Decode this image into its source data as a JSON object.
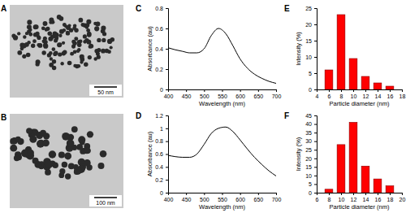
{
  "chart_data": [
    {
      "type": "image",
      "title": "A",
      "annotations": [
        "50 nm"
      ]
    },
    {
      "type": "line",
      "title": "C",
      "x_label": "Wavelength (nm)",
      "y_label": "Absorbance (au)",
      "x": [
        400,
        420,
        440,
        460,
        480,
        500,
        520,
        540,
        560,
        580,
        600,
        620,
        640,
        660,
        680,
        700
      ],
      "values": [
        0.41,
        0.39,
        0.375,
        0.36,
        0.36,
        0.4,
        0.53,
        0.6,
        0.55,
        0.43,
        0.3,
        0.21,
        0.15,
        0.11,
        0.08,
        0.06
      ],
      "color": "#000000",
      "xlim": [
        400,
        700
      ],
      "xticks": [
        400,
        450,
        500,
        550,
        600,
        650,
        700
      ],
      "ylim": [
        0,
        0.8
      ],
      "yticks": [
        0,
        0.2,
        0.4,
        0.6,
        0.8
      ]
    },
    {
      "type": "bar",
      "title": "E",
      "x_label": "Particle diameter (nm)",
      "y_label": "Intensity (%)",
      "x": [
        6,
        8,
        10,
        12,
        14,
        16
      ],
      "values": [
        6,
        23,
        9.5,
        4,
        2,
        1
      ],
      "color": "#ff0000",
      "xlim": [
        4,
        18
      ],
      "xticks": [
        4,
        6,
        8,
        10,
        12,
        14,
        16,
        18
      ],
      "ylim": [
        0,
        25
      ],
      "yticks": [
        0,
        5,
        10,
        15,
        20,
        25
      ]
    },
    {
      "type": "image",
      "title": "B",
      "annotations": [
        "100 nm"
      ]
    },
    {
      "type": "line",
      "title": "D",
      "x_label": "Wavelength (nm)",
      "y_label": "Absorbance (au)",
      "x": [
        400,
        420,
        440,
        460,
        480,
        500,
        520,
        540,
        560,
        580,
        600,
        620,
        640,
        660,
        680,
        700
      ],
      "values": [
        0.58,
        0.56,
        0.55,
        0.55,
        0.6,
        0.75,
        0.92,
        1.0,
        1.02,
        0.95,
        0.82,
        0.68,
        0.55,
        0.44,
        0.34,
        0.26
      ],
      "color": "#000000",
      "xlim": [
        400,
        700
      ],
      "xticks": [
        400,
        450,
        500,
        550,
        600,
        650,
        700
      ],
      "ylim": [
        0,
        1.2
      ],
      "yticks": [
        0,
        0.2,
        0.4,
        0.6,
        0.8,
        1,
        1.2
      ]
    },
    {
      "type": "bar",
      "title": "F",
      "x_label": "Particle diameter (nm)",
      "y_label": "Intensity (%)",
      "x": [
        8,
        10,
        12,
        14,
        16,
        18
      ],
      "values": [
        2,
        28,
        41,
        15.5,
        8,
        4
      ],
      "color": "#ff0000",
      "xlim": [
        6,
        20
      ],
      "xticks": [
        6,
        8,
        10,
        12,
        14,
        16,
        18,
        20
      ],
      "ylim": [
        0,
        45
      ],
      "yticks": [
        0,
        5,
        10,
        15,
        20,
        25,
        30,
        35,
        40,
        45
      ]
    }
  ]
}
